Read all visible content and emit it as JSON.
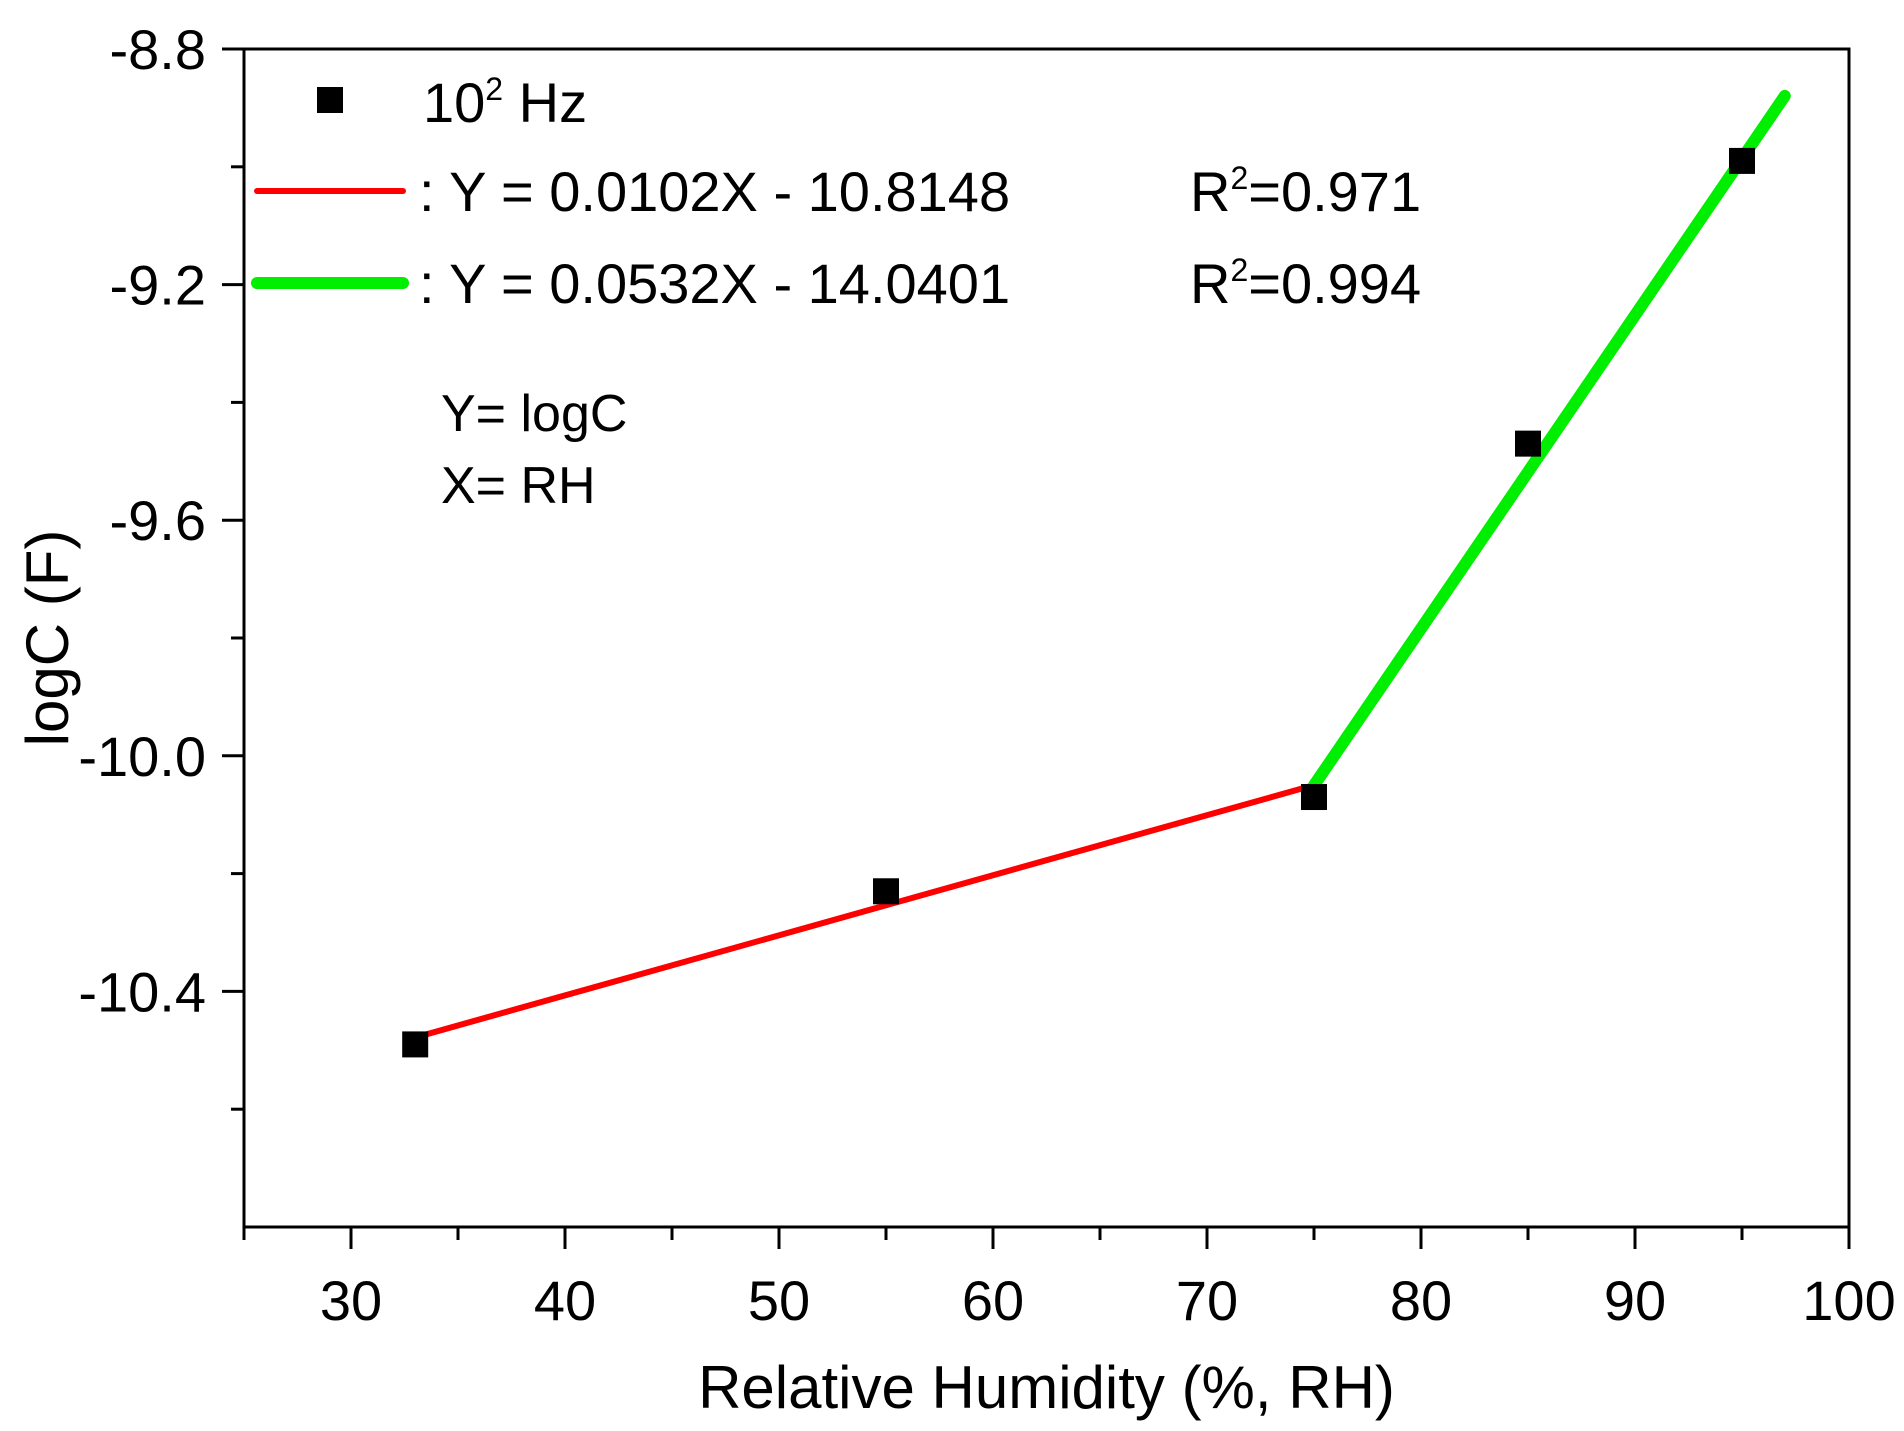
{
  "chart_data": {
    "type": "scatter",
    "xlabel": "Relative Humidity (%, RH)",
    "ylabel": "logC (F)",
    "xlim": [
      25,
      100
    ],
    "ylim": [
      -10.8,
      -8.8
    ],
    "x_major_ticks": [
      30,
      40,
      50,
      60,
      70,
      80,
      90,
      100
    ],
    "x_minor_ticks": [
      25,
      35,
      45,
      55,
      65,
      75,
      85,
      95
    ],
    "y_major_ticks": [
      -8.8,
      -9.2,
      -9.6,
      -10.0,
      -10.4
    ],
    "y_minor_ticks": [
      -9.0,
      -9.4,
      -9.8,
      -10.2,
      -10.6
    ],
    "x_tick_labels": [
      "30",
      "40",
      "50",
      "60",
      "70",
      "80",
      "90",
      "100"
    ],
    "y_tick_labels": [
      "-8.8",
      "-9.2",
      "-9.6",
      "-10.0",
      "-10.4"
    ],
    "grid": false,
    "legend_position": "top-left",
    "series": [
      {
        "name": "10",
        "name_sup": "2",
        "name_suffix": " Hz",
        "marker": "square",
        "color": "#000000",
        "x": [
          33,
          55,
          75,
          85,
          95
        ],
        "y": [
          -10.49,
          -10.23,
          -10.07,
          -9.47,
          -8.99
        ]
      }
    ],
    "fits": [
      {
        "color": "#ff0000",
        "x_range": [
          33,
          75
        ],
        "slope": 0.0102,
        "intercept": -10.8148,
        "equation": ": Y = 0.0102X - 10.8148",
        "r2_prefix": "R",
        "r2_sup": "2",
        "r2_value": "=0.971"
      },
      {
        "color": "#00ee00",
        "x_range": [
          75,
          97
        ],
        "slope": 0.0532,
        "intercept": -14.0401,
        "equation": ": Y = 0.0532X - 14.0401",
        "r2_prefix": "R",
        "r2_sup": "2",
        "r2_value": "=0.994"
      }
    ],
    "annotations": [
      "Y= logC",
      "X= RH"
    ]
  }
}
